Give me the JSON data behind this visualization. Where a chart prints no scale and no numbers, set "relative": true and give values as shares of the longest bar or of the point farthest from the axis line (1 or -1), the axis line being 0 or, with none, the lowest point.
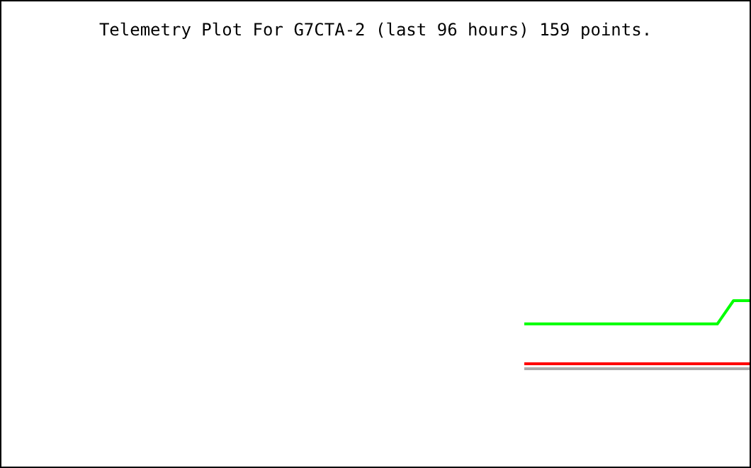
{
  "chart_data": {
    "type": "line",
    "title": "Telemetry Plot For G7CTA-2 (last 96 hours) 159 points.",
    "relative": true,
    "tick_labels": false,
    "grid": false,
    "marker": "none",
    "line_style": "solid",
    "categories": [
      null,
      null,
      null,
      null,
      null,
      null,
      null,
      null,
      null,
      null,
      null,
      null,
      null,
      null,
      null
    ],
    "series": [
      {
        "color": "#aaaaaa",
        "values": [
          0.59,
          0.59,
          0.59,
          0.59,
          0.59,
          0.59,
          0.59,
          0.59,
          0.59,
          0.59,
          0.59,
          0.59,
          0.59,
          0.59,
          0.59
        ]
      },
      {
        "color": "#ff0000",
        "values": [
          0.62,
          0.62,
          0.62,
          0.62,
          0.62,
          0.62,
          0.62,
          0.62,
          0.62,
          0.62,
          0.62,
          0.62,
          0.62,
          0.62,
          0.62
        ]
      },
      {
        "color": "#00ff00",
        "values": [
          0.86,
          0.86,
          0.86,
          0.86,
          0.86,
          0.86,
          0.86,
          0.86,
          0.86,
          0.86,
          0.86,
          0.86,
          0.86,
          1,
          1
        ]
      }
    ]
  }
}
